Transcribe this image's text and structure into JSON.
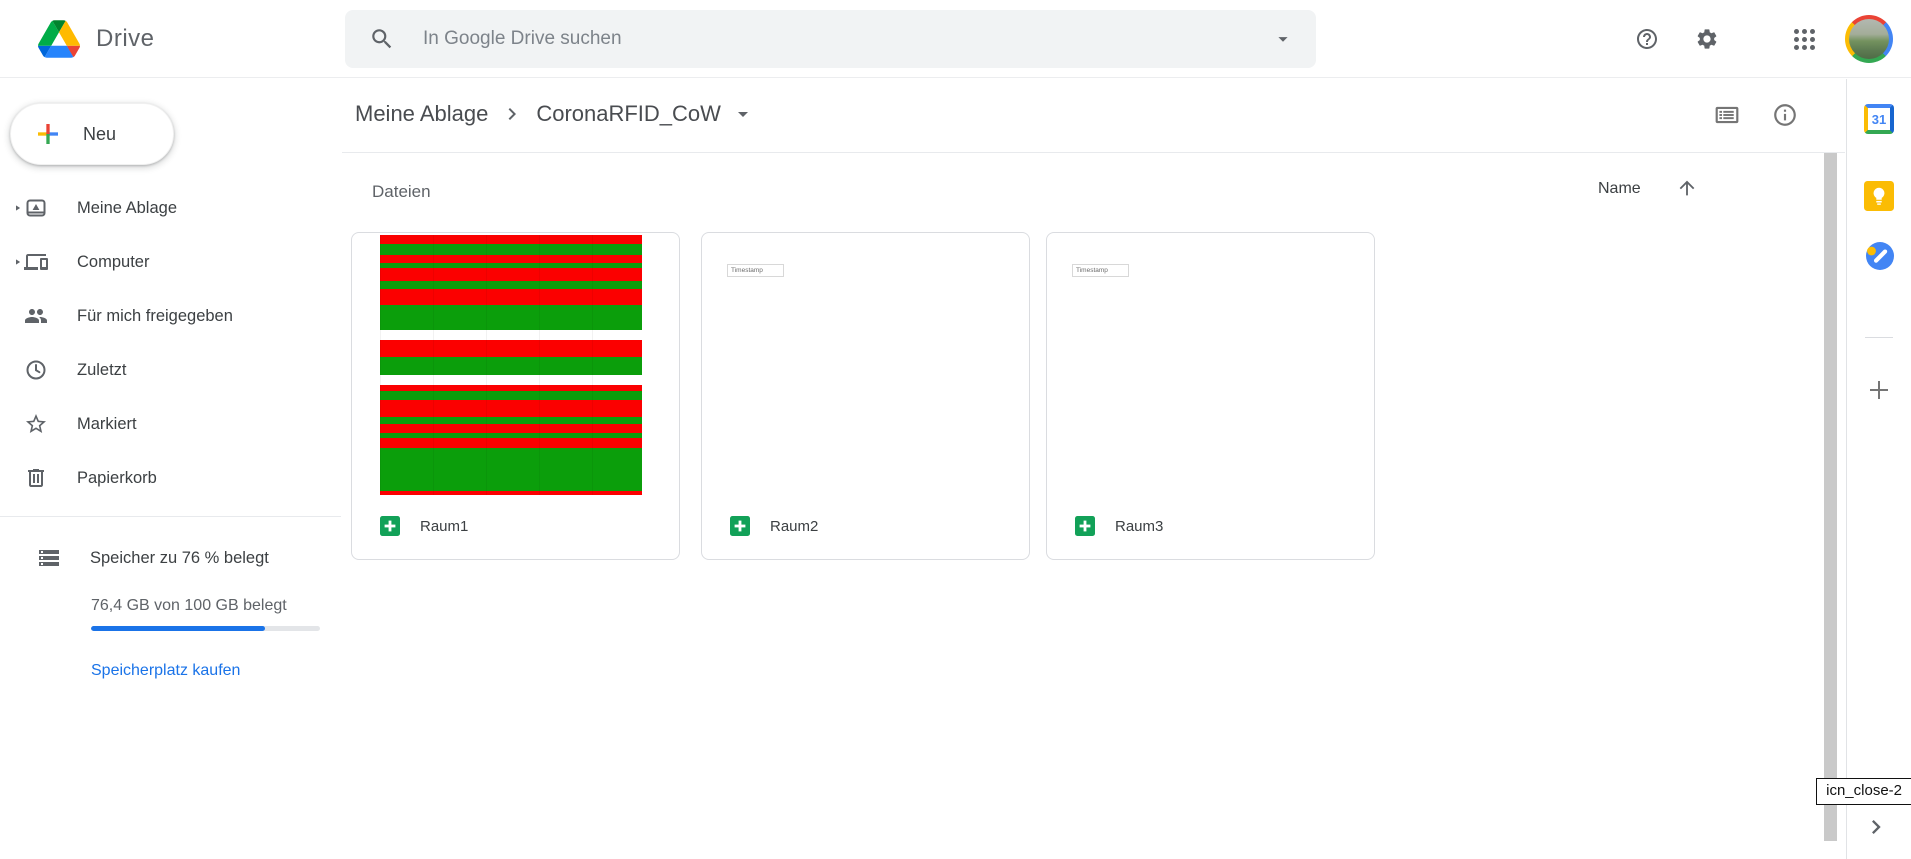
{
  "header": {
    "app_name": "Drive",
    "search_placeholder": "In Google Drive suchen"
  },
  "sidebar": {
    "new_label": "Neu",
    "items": [
      {
        "label": "Meine Ablage",
        "expandable": true
      },
      {
        "label": "Computer",
        "expandable": true
      },
      {
        "label": "Für mich freigegeben",
        "expandable": false
      },
      {
        "label": "Zuletzt",
        "expandable": false
      },
      {
        "label": "Markiert",
        "expandable": false
      },
      {
        "label": "Papierkorb",
        "expandable": false
      }
    ],
    "storage": {
      "title": "Speicher zu 76 % belegt",
      "usage": "76,4 GB von 100 GB belegt",
      "percent": 76,
      "buy_label": "Speicherplatz kaufen"
    }
  },
  "main": {
    "breadcrumb_root": "Meine Ablage",
    "breadcrumb_current": "CoronaRFID_CoW",
    "section_title": "Dateien",
    "sort_label": "Name",
    "sort_direction": "ascending",
    "files": [
      {
        "name": "Raum1",
        "type": "spreadsheet",
        "thumbnail": "striped-rows"
      },
      {
        "name": "Raum2",
        "type": "spreadsheet",
        "thumbnail": "blank-sheet",
        "cell": "Timestamp"
      },
      {
        "name": "Raum3",
        "type": "spreadsheet",
        "thumbnail": "blank-sheet",
        "cell": "Timestamp"
      }
    ]
  },
  "thumbnail_stripes": [
    [
      "stripe_red",
      9
    ],
    [
      "stripe_green",
      11
    ],
    [
      "stripe_red",
      9
    ],
    [
      "stripe_green",
      5
    ],
    [
      "stripe_red",
      13
    ],
    [
      "stripe_green",
      8
    ],
    [
      "stripe_red",
      16
    ],
    [
      "stripe_green",
      26
    ],
    [
      "white",
      10
    ],
    [
      "stripe_red",
      17
    ],
    [
      "stripe_green",
      19
    ],
    [
      "white",
      10
    ],
    [
      "stripe_red",
      6
    ],
    [
      "stripe_green",
      9
    ],
    [
      "stripe_red",
      17
    ],
    [
      "stripe_green",
      8
    ],
    [
      "stripe_red",
      9
    ],
    [
      "stripe_green",
      5
    ],
    [
      "stripe_red",
      10
    ],
    [
      "stripe_green",
      44
    ],
    [
      "stripe_red",
      4
    ]
  ],
  "side_panel": {
    "calendar_day": "31"
  },
  "tooltip": {
    "text": "icn_close-2"
  },
  "colors": {
    "stripe_red": "#fb0000",
    "stripe_green": "#0b9e0b",
    "white": "#ffffff",
    "accent_blue": "#1a73e8",
    "sheets_green": "#12a158",
    "keep_yellow": "#fbbc04",
    "tasks_blue": "#4285f4"
  }
}
